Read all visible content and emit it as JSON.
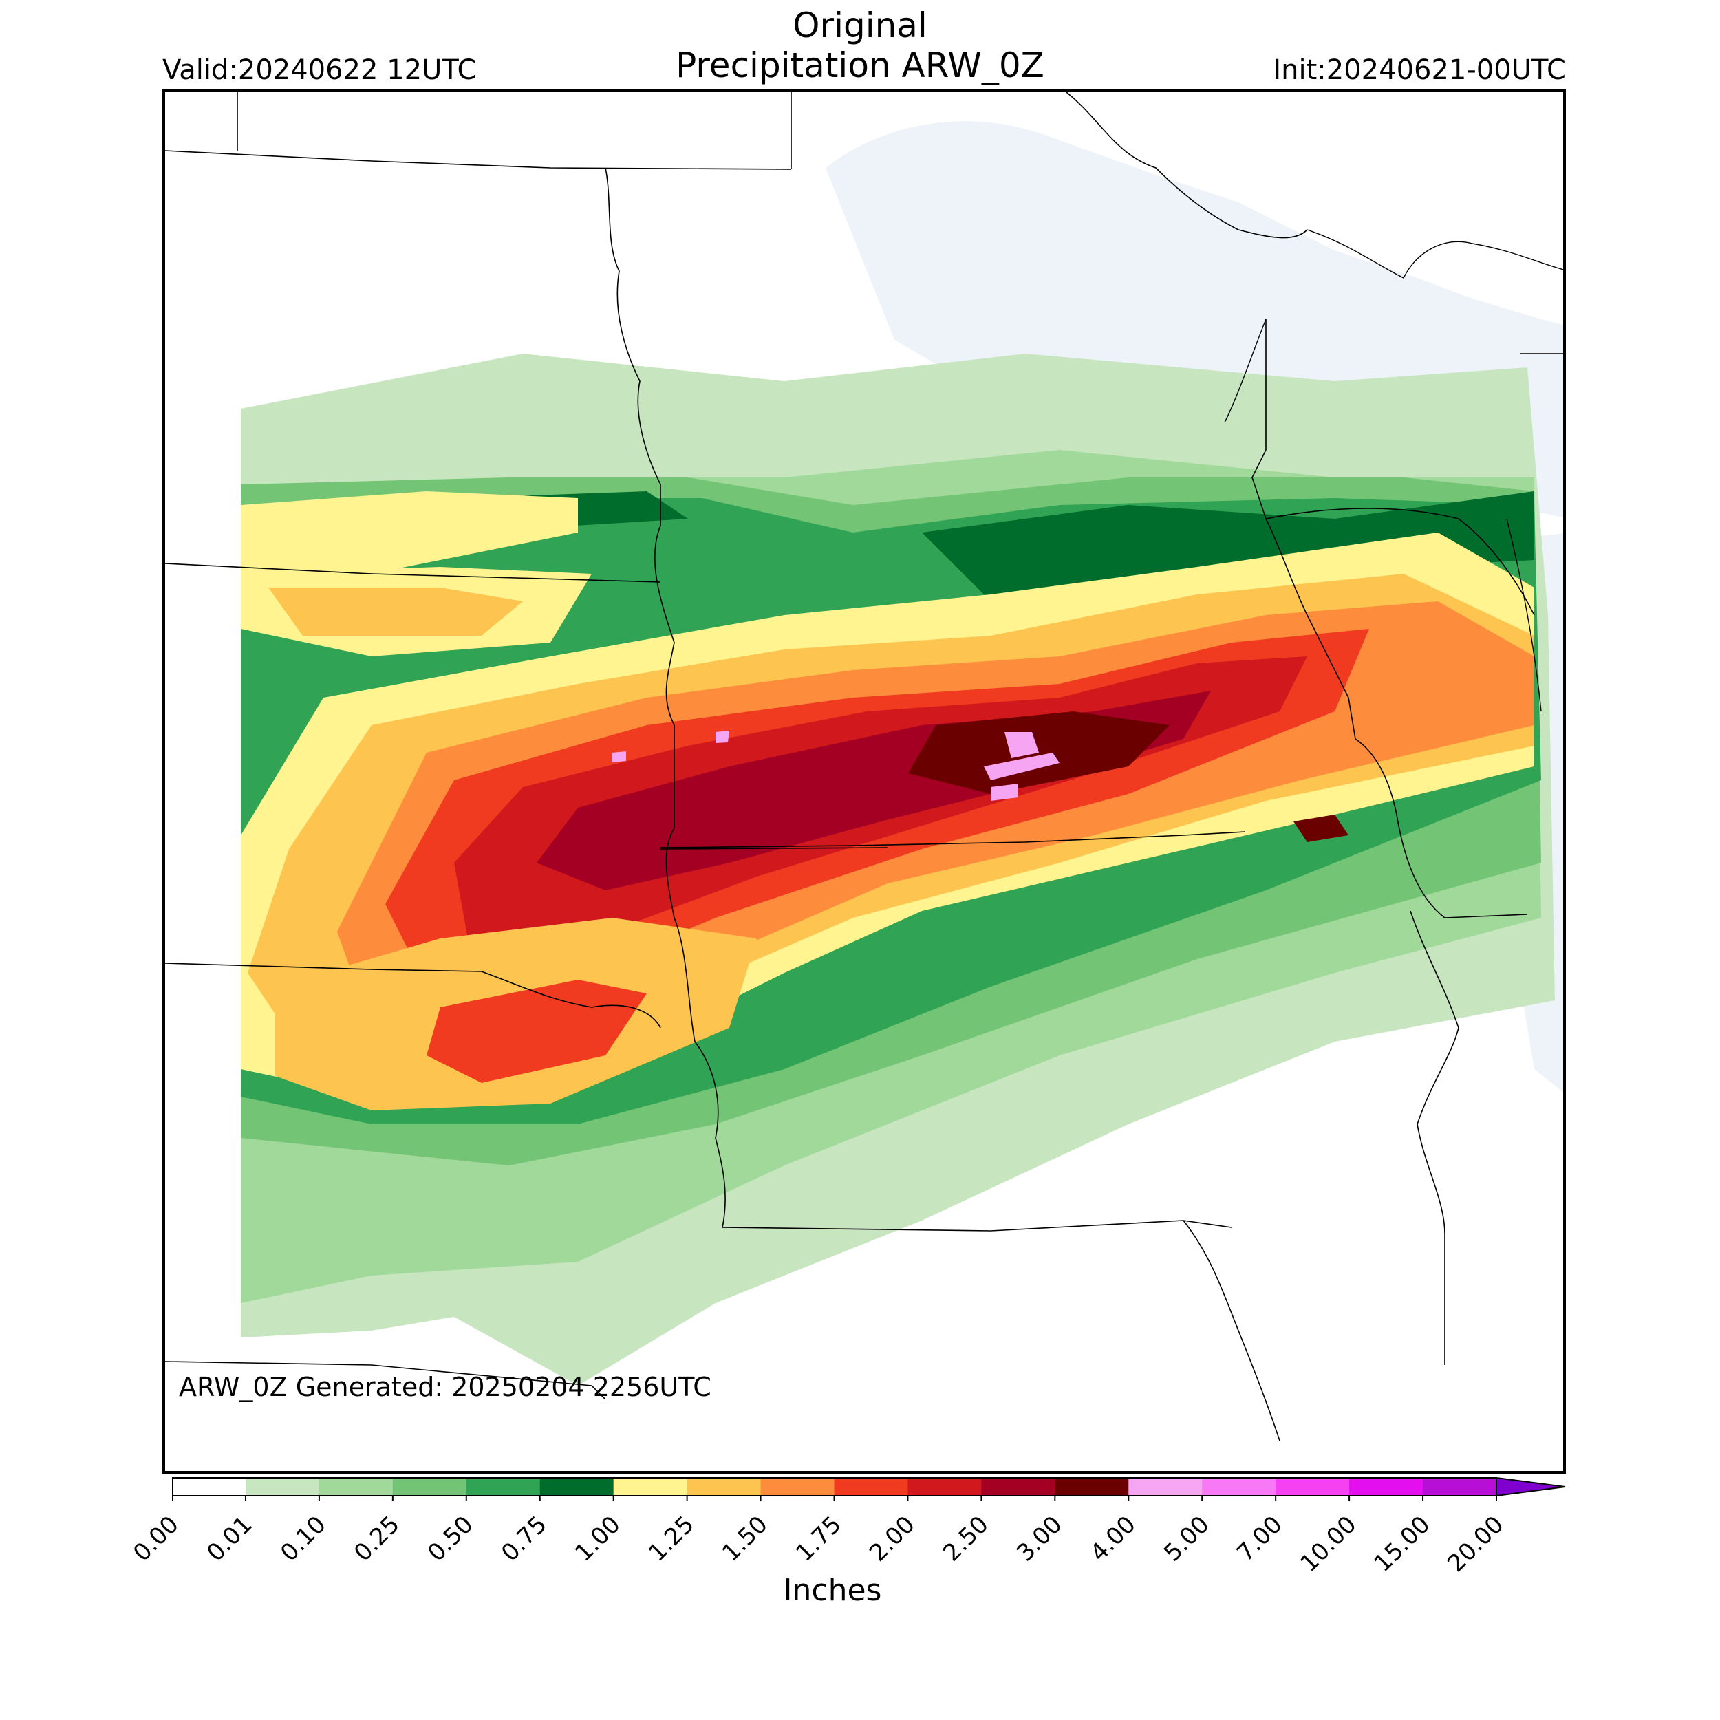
{
  "header": {
    "title_line1": "Original",
    "title_line2": "Precipitation ARW_0Z",
    "valid": "Valid:20240622 12UTC",
    "init": "Init:20240621-00UTC"
  },
  "map": {
    "generated_label": "ARW_0Z Generated: 20250204 2256UTC",
    "water_color": "#eef3fa",
    "boundary_color": "#000000"
  },
  "colorbar": {
    "label": "Inches",
    "ticks": [
      "0.00",
      "0.01",
      "0.10",
      "0.25",
      "0.50",
      "0.75",
      "1.00",
      "1.25",
      "1.50",
      "1.75",
      "2.00",
      "2.50",
      "3.00",
      "4.00",
      "5.00",
      "7.00",
      "10.00",
      "15.00",
      "20.00"
    ],
    "colors": [
      "#ffffff",
      "#c7e6c0",
      "#a1d99b",
      "#74c476",
      "#31a354",
      "#006d2c",
      "#fff48f",
      "#fdc44f",
      "#fd8d3c",
      "#f03b20",
      "#d1181c",
      "#a40024",
      "#6b0000",
      "#f6a5f3",
      "#f779f5",
      "#f541f1",
      "#e40fef",
      "#b80fd6",
      "#8000d0"
    ]
  }
}
